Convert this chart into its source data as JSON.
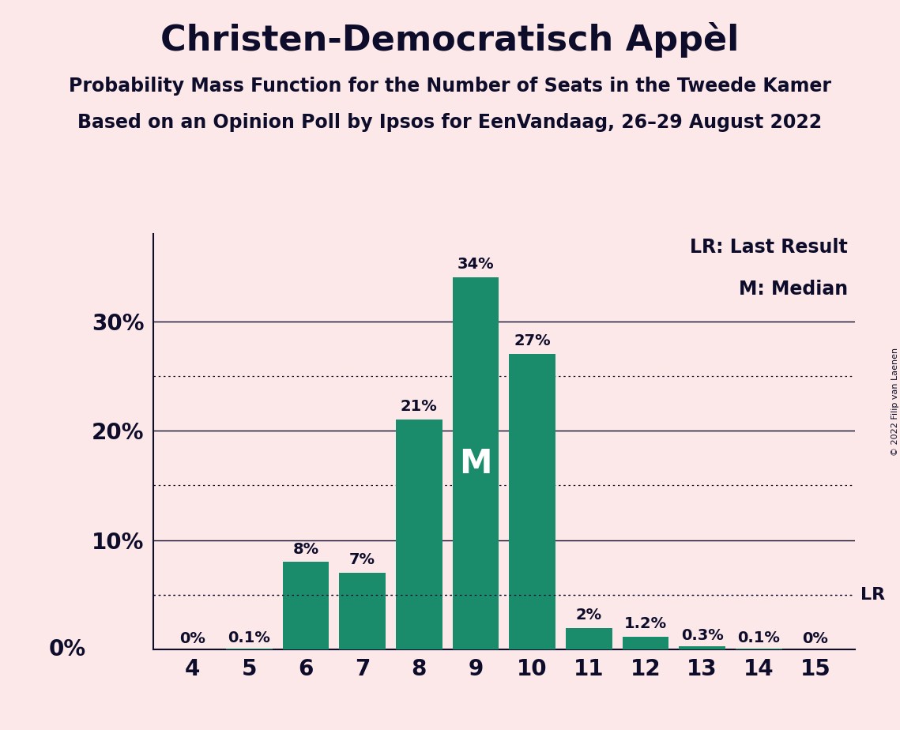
{
  "title": "Christen-Democratisch Appèl",
  "subtitle1": "Probability Mass Function for the Number of Seats in the Tweede Kamer",
  "subtitle2": "Based on an Opinion Poll by Ipsos for EenVandaag, 26–29 August 2022",
  "copyright": "© 2022 Filip van Laenen",
  "seats": [
    4,
    5,
    6,
    7,
    8,
    9,
    10,
    11,
    12,
    13,
    14,
    15
  ],
  "probabilities": [
    0.0,
    0.1,
    8.0,
    7.0,
    21.0,
    34.0,
    27.0,
    2.0,
    1.2,
    0.3,
    0.1,
    0.0
  ],
  "labels": [
    "0%",
    "0.1%",
    "8%",
    "7%",
    "21%",
    "34%",
    "27%",
    "2%",
    "1.2%",
    "0.3%",
    "0.1%",
    "0%"
  ],
  "bar_color": "#1a8c6c",
  "background_color": "#fce8e8",
  "text_color": "#0d0d2b",
  "median_seat": 9,
  "median_label": "M",
  "lr_value": 5.0,
  "lr_label": "LR",
  "yticks_major": [
    0,
    10,
    20,
    30
  ],
  "yticks_major_labels": [
    "0%",
    "10%",
    "20%",
    "30%"
  ],
  "yticks_minor": [
    5,
    15,
    25
  ],
  "ylim": [
    0,
    38
  ],
  "legend_lr": "LR: Last Result",
  "legend_m": "M: Median",
  "bar_width": 0.82,
  "label_fontsize": 14,
  "tick_fontsize": 20,
  "title_fontsize": 32,
  "subtitle_fontsize": 17,
  "legend_fontsize": 17,
  "median_fontsize": 30,
  "lr_fontsize": 16,
  "copyright_fontsize": 8
}
